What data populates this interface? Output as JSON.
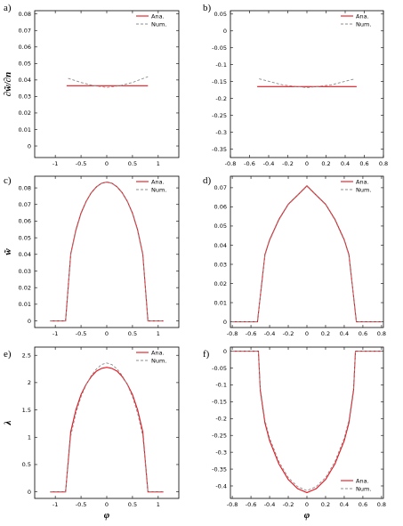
{
  "colors": {
    "analytic": "#e8141c",
    "numeric": "#8c8c8c",
    "axis": "#000000"
  },
  "chart_data": [
    {
      "panel": "a)",
      "type": "line",
      "ylabel": "∂w̃/∂n",
      "xlabel": "",
      "xlim": [
        -1.4,
        1.4
      ],
      "ylim": [
        -0.007,
        0.082
      ],
      "xticks": [
        -1,
        -0.5,
        0,
        0.5,
        1
      ],
      "xtick_labels": [
        "-1",
        "-0.5",
        "0",
        "0.5",
        "1"
      ],
      "yticks": [
        0,
        0.01,
        0.02,
        0.03,
        0.04,
        0.05,
        0.06,
        0.07,
        0.08
      ],
      "ytick_labels": [
        "0",
        "0.01",
        "0.02",
        "0.03",
        "0.04",
        "0.05",
        "0.06",
        "0.07",
        "0.08"
      ],
      "legend": "top-right",
      "series": [
        {
          "name": "Ana.",
          "style": "solid",
          "x": [
            -0.78,
            0.8
          ],
          "y": [
            0.0365,
            0.0365
          ]
        },
        {
          "name": "Num.",
          "style": "dashed",
          "x": [
            -0.75,
            -0.5,
            -0.25,
            0,
            0.25,
            0.5,
            0.8
          ],
          "y": [
            0.041,
            0.0385,
            0.0365,
            0.0355,
            0.0365,
            0.0385,
            0.042
          ]
        }
      ]
    },
    {
      "panel": "b)",
      "type": "line",
      "ylabel": "",
      "xlabel": "",
      "xlim": [
        -0.8,
        0.8
      ],
      "ylim": [
        -0.375,
        0.06
      ],
      "xticks": [
        -0.8,
        -0.6,
        -0.4,
        -0.2,
        0,
        0.2,
        0.4,
        0.6,
        0.8
      ],
      "xtick_labels": [
        "-0.8",
        "-0.6",
        "-0.4",
        "-0.2",
        "0",
        "0.2",
        "0.4",
        "0.6",
        "0.8"
      ],
      "yticks": [
        0.05,
        0,
        -0.05,
        -0.1,
        -0.15,
        -0.2,
        -0.25,
        -0.3,
        -0.35
      ],
      "ytick_labels": [
        "0.05",
        "0",
        "-0.05",
        "-0.1",
        "-0.15",
        "-0.2",
        "-0.25",
        "-0.3",
        "-0.35"
      ],
      "legend": "top-right",
      "series": [
        {
          "name": "Ana.",
          "style": "solid",
          "x": [
            -0.52,
            0.52
          ],
          "y": [
            -0.165,
            -0.165
          ]
        },
        {
          "name": "Num.",
          "style": "dashed",
          "x": [
            -0.5,
            -0.25,
            0,
            0.25,
            0.5
          ],
          "y": [
            -0.142,
            -0.16,
            -0.168,
            -0.16,
            -0.142
          ]
        }
      ]
    },
    {
      "panel": "c)",
      "type": "line",
      "ylabel": "w̃",
      "xlabel": "",
      "xlim": [
        -1.4,
        1.4
      ],
      "ylim": [
        -0.004,
        0.087
      ],
      "xticks": [
        -1,
        -0.5,
        0,
        0.5,
        1
      ],
      "xtick_labels": [
        "-1",
        "-0.5",
        "0",
        "0.5",
        "1"
      ],
      "yticks": [
        0,
        0.01,
        0.02,
        0.03,
        0.04,
        0.05,
        0.06,
        0.07,
        0.08
      ],
      "ytick_labels": [
        "0",
        "0.01",
        "0.02",
        "0.03",
        "0.04",
        "0.05",
        "0.06",
        "0.07",
        "0.08"
      ],
      "legend": "top-right",
      "series": [
        {
          "name": "Ana.",
          "style": "solid",
          "x": [
            -1.1,
            -0.8,
            -0.8,
            -0.7,
            -0.6,
            -0.5,
            -0.4,
            -0.3,
            -0.2,
            -0.1,
            0,
            0.1,
            0.2,
            0.3,
            0.4,
            0.5,
            0.6,
            0.7,
            0.8,
            0.8,
            1.1
          ],
          "y": [
            0,
            0,
            0,
            0.0402,
            0.0547,
            0.0648,
            0.0719,
            0.0771,
            0.0806,
            0.0828,
            0.0835,
            0.0828,
            0.0806,
            0.0771,
            0.0719,
            0.0648,
            0.0547,
            0.0402,
            0,
            0,
            0
          ]
        },
        {
          "name": "Num.",
          "style": "dashed",
          "x": [
            -1.1,
            -0.8,
            -0.8,
            -0.7,
            -0.6,
            -0.5,
            -0.4,
            -0.3,
            -0.2,
            -0.1,
            0,
            0.1,
            0.2,
            0.3,
            0.4,
            0.5,
            0.6,
            0.7,
            0.8,
            0.8,
            1.1
          ],
          "y": [
            0,
            0,
            0,
            0.0395,
            0.054,
            0.0643,
            0.0716,
            0.0769,
            0.0805,
            0.0827,
            0.0834,
            0.0827,
            0.0805,
            0.0769,
            0.0716,
            0.0643,
            0.054,
            0.0395,
            0,
            0,
            0
          ]
        }
      ]
    },
    {
      "panel": "d)",
      "type": "line",
      "ylabel": "",
      "xlabel": "",
      "xlim": [
        -0.82,
        0.82
      ],
      "ylim": [
        -0.003,
        0.076
      ],
      "xticks": [
        -0.8,
        -0.6,
        -0.4,
        -0.2,
        0,
        0.2,
        0.4,
        0.6,
        0.8
      ],
      "xtick_labels": [
        "-0.8",
        "-0.6",
        "-0.4",
        "-0.2",
        "0",
        "0.2",
        "0.4",
        "0.6",
        "0.8"
      ],
      "yticks": [
        0,
        0.01,
        0.02,
        0.03,
        0.04,
        0.05,
        0.06,
        0.07
      ],
      "ytick_labels": [
        "0",
        "0.01",
        "0.02",
        "0.03",
        "0.04",
        "0.05",
        "0.06",
        "0.07"
      ],
      "legend": "top-right",
      "series": [
        {
          "name": "Ana.",
          "style": "solid",
          "x": [
            -0.8,
            -0.53,
            -0.53,
            -0.45,
            -0.4,
            -0.3,
            -0.2,
            -0.1,
            0,
            0.1,
            0.2,
            0.3,
            0.4,
            0.45,
            0.53,
            0.53,
            0.8
          ],
          "y": [
            0,
            0,
            0,
            0.0351,
            0.0428,
            0.0535,
            0.0614,
            0.0661,
            0.071,
            0.0661,
            0.0614,
            0.0535,
            0.0428,
            0.0351,
            0,
            0,
            0
          ]
        },
        {
          "name": "Num.",
          "style": "dashed",
          "x": [
            -0.8,
            -0.53,
            -0.53,
            -0.45,
            -0.4,
            -0.3,
            -0.2,
            -0.1,
            0,
            0.1,
            0.2,
            0.3,
            0.4,
            0.45,
            0.53,
            0.53,
            0.8
          ],
          "y": [
            0,
            0,
            0,
            0.0345,
            0.0423,
            0.0531,
            0.0611,
            0.0659,
            0.0707,
            0.0659,
            0.0611,
            0.0531,
            0.0423,
            0.0345,
            0,
            0,
            0
          ]
        }
      ]
    },
    {
      "panel": "e)",
      "type": "line",
      "ylabel": "λ",
      "xlabel": "φ",
      "xlim": [
        -1.4,
        1.4
      ],
      "ylim": [
        -0.12,
        2.65
      ],
      "xticks": [
        -1,
        -0.5,
        0,
        0.5,
        1
      ],
      "xtick_labels": [
        "-1",
        "-0.5",
        "0",
        "0.5",
        "1"
      ],
      "yticks": [
        0,
        0.5,
        1,
        1.5,
        2,
        2.5
      ],
      "ytick_labels": [
        "0",
        "0.5",
        "1",
        "1.5",
        "2",
        "2.5"
      ],
      "legend": "top-right",
      "series": [
        {
          "name": "Ana.",
          "style": "solid",
          "x": [
            -1.1,
            -0.8,
            -0.8,
            -0.7,
            -0.6,
            -0.5,
            -0.4,
            -0.3,
            -0.2,
            -0.1,
            0,
            0.1,
            0.2,
            0.3,
            0.4,
            0.5,
            0.6,
            0.7,
            0.8,
            0.8,
            1.1
          ],
          "y": [
            0,
            0,
            0,
            1.1,
            1.5,
            1.78,
            1.97,
            2.11,
            2.21,
            2.26,
            2.28,
            2.26,
            2.21,
            2.11,
            1.97,
            1.78,
            1.5,
            1.1,
            0,
            0,
            0
          ]
        },
        {
          "name": "Num.",
          "style": "dashed",
          "x": [
            -1.1,
            -0.8,
            -0.8,
            -0.7,
            -0.6,
            -0.5,
            -0.4,
            -0.3,
            -0.2,
            -0.1,
            0,
            0.1,
            0.2,
            0.3,
            0.4,
            0.5,
            0.6,
            0.7,
            0.8,
            0.8,
            1.1
          ],
          "y": [
            0,
            0,
            0,
            1.02,
            1.44,
            1.74,
            1.96,
            2.13,
            2.25,
            2.33,
            2.36,
            2.33,
            2.25,
            2.13,
            1.96,
            1.74,
            1.44,
            1.02,
            0,
            0,
            0
          ]
        }
      ]
    },
    {
      "panel": "f)",
      "type": "line",
      "ylabel": "",
      "xlabel": "φ",
      "xlim": [
        -0.82,
        0.82
      ],
      "ylim": [
        -0.437,
        0.012
      ],
      "xticks": [
        -0.8,
        -0.6,
        -0.4,
        -0.2,
        0,
        0.2,
        0.4,
        0.6,
        0.8
      ],
      "xtick_labels": [
        "-0.8",
        "-0.6",
        "-0.4",
        "-0.2",
        "0",
        "0.2",
        "0.4",
        "0.6",
        "0.8"
      ],
      "yticks": [
        0,
        -0.05,
        -0.1,
        -0.15,
        -0.2,
        -0.25,
        -0.3,
        -0.35,
        -0.4
      ],
      "ytick_labels": [
        "0",
        "-0.05",
        "-0.1",
        "-0.15",
        "-0.2",
        "-0.25",
        "-0.3",
        "-0.35",
        "-0.4"
      ],
      "legend": "bottom-right",
      "series": [
        {
          "name": "Ana.",
          "style": "solid",
          "x": [
            -0.8,
            -0.52,
            -0.52,
            -0.5,
            -0.45,
            -0.4,
            -0.3,
            -0.2,
            -0.1,
            0,
            0.1,
            0.2,
            0.3,
            0.4,
            0.45,
            0.5,
            0.52,
            0.52,
            0.8
          ],
          "y": [
            0,
            0,
            0,
            -0.116,
            -0.213,
            -0.266,
            -0.335,
            -0.381,
            -0.408,
            -0.42,
            -0.408,
            -0.381,
            -0.335,
            -0.266,
            -0.213,
            -0.116,
            0,
            0,
            0
          ]
        },
        {
          "name": "Num.",
          "style": "dashed",
          "x": [
            -0.8,
            -0.52,
            -0.52,
            -0.5,
            -0.45,
            -0.4,
            -0.3,
            -0.2,
            -0.1,
            0,
            0.1,
            0.2,
            0.3,
            0.4,
            0.45,
            0.5,
            0.52,
            0.52,
            0.8
          ],
          "y": [
            0,
            0,
            0,
            -0.108,
            -0.205,
            -0.258,
            -0.328,
            -0.375,
            -0.402,
            -0.414,
            -0.402,
            -0.375,
            -0.328,
            -0.258,
            -0.205,
            -0.108,
            0,
            0,
            0
          ]
        }
      ]
    }
  ]
}
